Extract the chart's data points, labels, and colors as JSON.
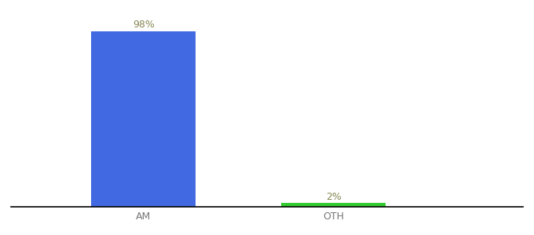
{
  "categories": [
    "AM",
    "OTH"
  ],
  "values": [
    98,
    2
  ],
  "bar_colors": [
    "#4169e1",
    "#33cc33"
  ],
  "value_labels": [
    "98%",
    "2%"
  ],
  "label_color": "#888855",
  "ylim": [
    0,
    105
  ],
  "background_color": "#ffffff",
  "label_fontsize": 9,
  "tick_fontsize": 9,
  "bar_width": 0.55,
  "spine_color": "#000000",
  "x_positions": [
    1,
    2
  ],
  "xlim": [
    0.3,
    3.0
  ]
}
